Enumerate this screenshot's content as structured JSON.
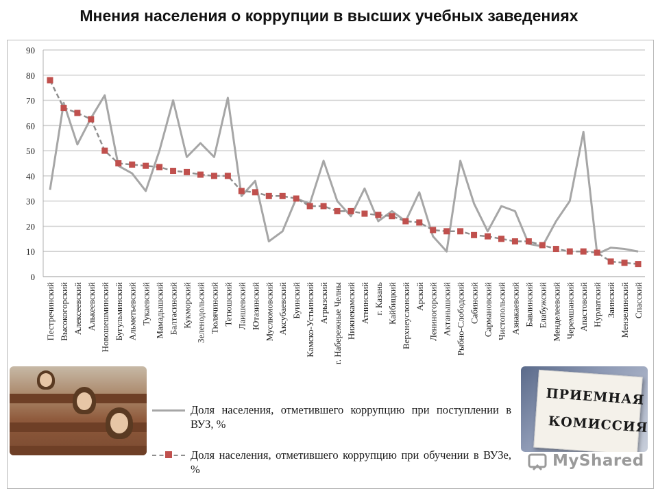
{
  "title": "Мнения населения о коррупции в высших учебных заведениях",
  "chart_data": {
    "type": "line",
    "ylim": [
      0,
      90
    ],
    "yticks": [
      0,
      10,
      20,
      30,
      40,
      50,
      60,
      70,
      80,
      90
    ],
    "grid": true,
    "legend_position": "bottom",
    "categories": [
      "Пестречинский",
      "Высокогорский",
      "Алексеевский",
      "Алькеевский",
      "Новошешминский",
      "Бугульминский",
      "Альметьевский",
      "Тукаевский",
      "Мамадышский",
      "Балтасинский",
      "Кукморский",
      "Зеленодольский",
      "Тюлячинский",
      "Тетюшский",
      "Лаишевский",
      "Ютазинский",
      "Муслюмовский",
      "Аксубаевский",
      "Буинский",
      "Камско-Устьинский",
      "Агрызский",
      "г. Набережные Челны",
      "Нижнекамский",
      "Атнинский",
      "г. Казань",
      "Кайбицкий",
      "Верхнеуслонский",
      "Арский",
      "Лениногорский",
      "Актанышский",
      "Рыбно-Слободский",
      "Сабинский",
      "Сармановский",
      "Чистопольский",
      "Азнакаевский",
      "Бавлинский",
      "Елабужский",
      "Менделеевский",
      "Черемшанский",
      "Апастовский",
      "Нурлатский",
      "Заинский",
      "Мензелинский",
      "Спасский"
    ],
    "series": [
      {
        "name": "Доля населения, отметившего коррупцию при поступлении в ВУЗ, %",
        "style": "solid",
        "color": "#a6a6a6",
        "values": [
          34.5,
          69,
          52.5,
          63,
          72,
          44,
          41,
          34,
          50,
          70,
          47.5,
          53,
          47.5,
          71,
          32,
          38,
          14,
          18,
          31,
          29,
          46,
          30,
          24,
          35,
          22,
          26,
          22,
          33.5,
          16,
          10,
          46,
          29,
          18,
          28,
          26,
          13,
          12,
          22,
          30,
          57.5,
          9,
          11.5,
          11,
          10
        ]
      },
      {
        "name": "Доля населения, отметившего коррупцию при обучении в ВУЗе, %",
        "style": "dashed",
        "color": "#8f8f8f",
        "marker_color": "#c0504d",
        "values": [
          78,
          67,
          65,
          62.5,
          50,
          45,
          44.5,
          44,
          43.5,
          42,
          41.5,
          40.5,
          40,
          40,
          34,
          33.5,
          32,
          32,
          31,
          28,
          28,
          26,
          26,
          25,
          24.5,
          24,
          22,
          21.5,
          18.5,
          18,
          18,
          16.5,
          16,
          15,
          14,
          14,
          12.5,
          11,
          10,
          10,
          9.5,
          6,
          5.5,
          5
        ]
      }
    ]
  },
  "legend": {
    "items": [
      "Доля населения, отметившего коррупцию при поступлении в ВУЗ, %",
      "Доля населения, отметившего коррупцию при обучении в ВУЗе, %"
    ]
  },
  "photo_right": {
    "sign_line1": "ПРИЕМНАЯ",
    "sign_line2": "КОМИССИЯ"
  },
  "watermark": {
    "text": "MyShared"
  },
  "colors": {
    "grid": "#d0d0d0",
    "solid_line": "#a6a6a6",
    "dashed_line": "#8f8f8f",
    "marker": "#c0504d"
  }
}
